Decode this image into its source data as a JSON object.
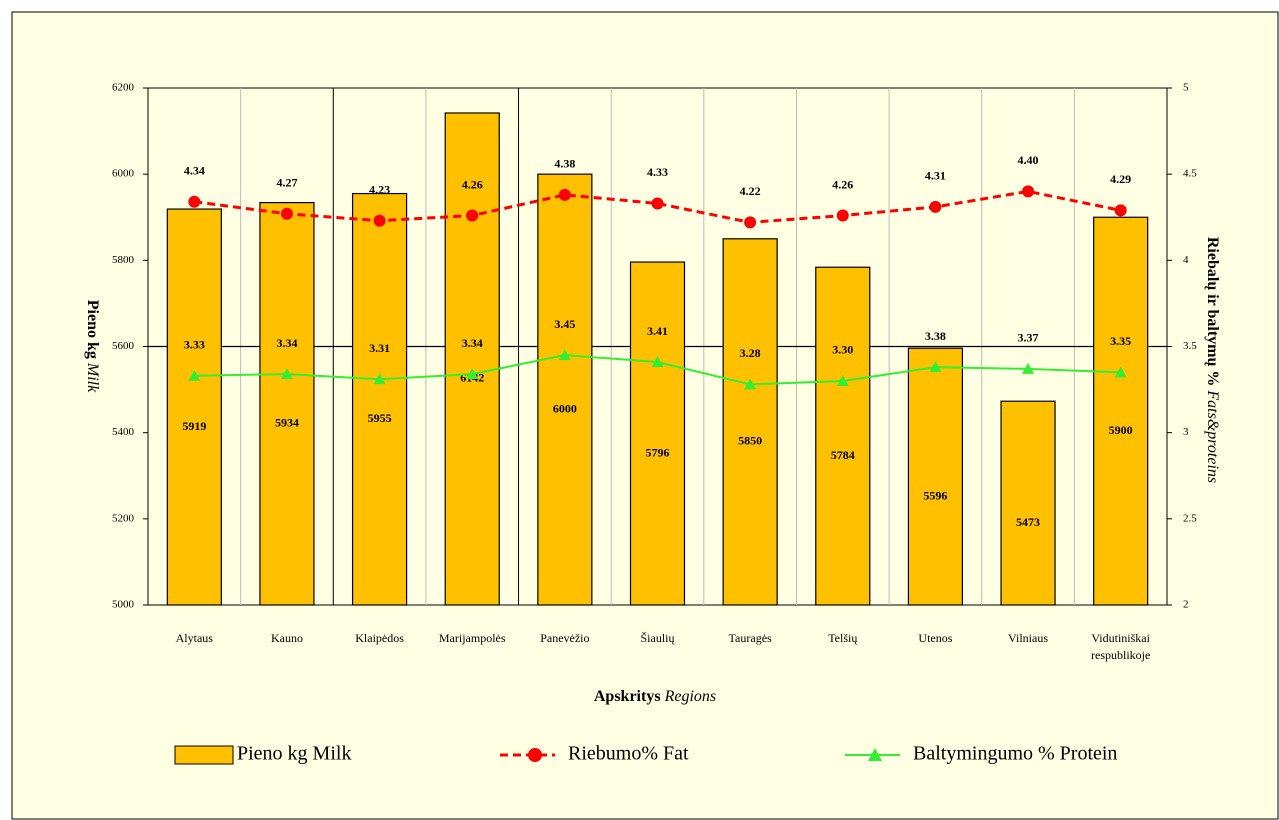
{
  "chart_data": {
    "type": "bar_line",
    "xlabel": {
      "main": "Apskritys",
      "en": "Regions"
    },
    "ylabel": {
      "main": "Pieno kg",
      "en": "Milk"
    },
    "y2label": {
      "main": "Riebalų ir baltymų  %",
      "en": "Fats&proteins"
    },
    "categories": [
      "Alytaus",
      "Kauno",
      "Klaipėdos",
      "Marijampolės",
      "Panevėžio",
      "Šiaulių",
      "Tauragės",
      "Telšių",
      "Utenos",
      "Vilniaus",
      "Vidutiniškai respublikoje"
    ],
    "series": [
      {
        "name": "Pieno kg Milk",
        "kind": "bar",
        "color": "#ffc000",
        "values": [
          5919,
          5934,
          5955,
          6142,
          6000,
          5796,
          5850,
          5784,
          5596,
          5473,
          5900
        ]
      },
      {
        "name": "Riebumo% Fat",
        "kind": "line",
        "axis": "y2",
        "color": "#ff0000",
        "dashed": true,
        "marker": "circle",
        "values": [
          4.34,
          4.27,
          4.23,
          4.26,
          4.38,
          4.33,
          4.22,
          4.26,
          4.31,
          4.4,
          4.29
        ],
        "value_labels": [
          "4.34",
          "4.27",
          "4.23",
          "4.26",
          "4.38",
          "4.33",
          "4.22",
          "4.26",
          "4.31",
          "4.40",
          "4.29"
        ]
      },
      {
        "name": "Baltymingumo % Protein",
        "kind": "line",
        "axis": "y2",
        "color": "#33ee33",
        "dashed": false,
        "marker": "triangle",
        "values": [
          3.33,
          3.34,
          3.31,
          3.34,
          3.45,
          3.41,
          3.28,
          3.3,
          3.38,
          3.37,
          3.35
        ],
        "value_labels": [
          "3.33",
          "3.34",
          "3.31",
          "3.34",
          "3.45",
          "3.41",
          "3.28",
          "3.30",
          "3.38",
          "3.37",
          "3.35"
        ]
      }
    ],
    "ylim": [
      5000,
      6200
    ],
    "yticks": [
      5000,
      5200,
      5400,
      5600,
      5800,
      6000,
      6200
    ],
    "y2lim": [
      2,
      5
    ],
    "y2ticks": [
      2,
      2.5,
      3,
      3.5,
      4,
      4.5,
      5
    ],
    "legend": "bottom"
  }
}
